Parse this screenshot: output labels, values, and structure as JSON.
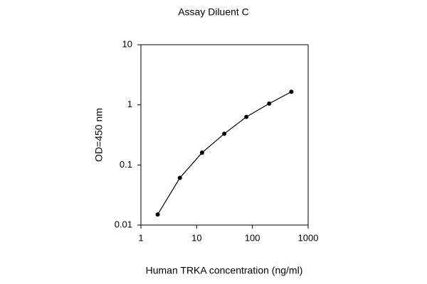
{
  "chart_data": {
    "type": "line",
    "title": "Assay Diluent C",
    "x_label": "Human TRKA concentration (ng/ml)",
    "y_label": "OD=450 nm",
    "x": [
      2,
      5,
      12.5,
      31.25,
      78,
      200,
      500
    ],
    "series": [
      {
        "name": "OD",
        "color": "#000000",
        "values": [
          0.015,
          0.061,
          0.16,
          0.33,
          0.63,
          1.05,
          1.65
        ]
      }
    ],
    "xlim": [
      1,
      1000
    ],
    "ylim": [
      0.01,
      10
    ],
    "xticks": [
      1,
      10,
      100,
      1000
    ],
    "yticks": [
      0.01,
      0.1,
      1,
      10
    ],
    "xscale": "log",
    "yscale": "log",
    "grid": false
  }
}
